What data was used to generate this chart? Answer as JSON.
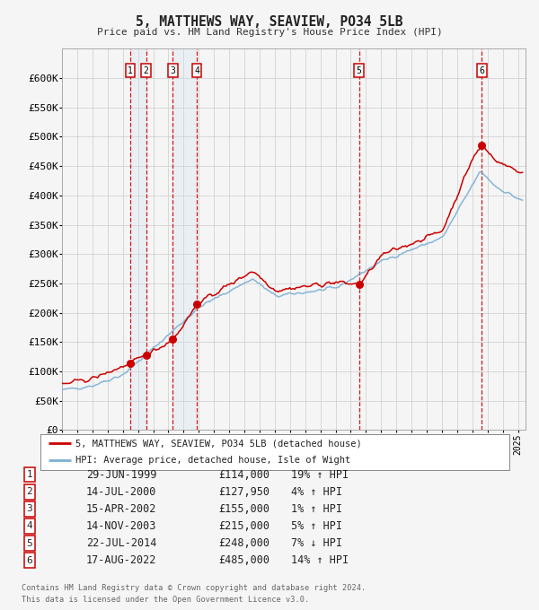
{
  "title": "5, MATTHEWS WAY, SEAVIEW, PO34 5LB",
  "subtitle": "Price paid vs. HM Land Registry's House Price Index (HPI)",
  "legend_property": "5, MATTHEWS WAY, SEAVIEW, PO34 5LB (detached house)",
  "legend_hpi": "HPI: Average price, detached house, Isle of Wight",
  "footer_line1": "Contains HM Land Registry data © Crown copyright and database right 2024.",
  "footer_line2": "This data is licensed under the Open Government Licence v3.0.",
  "sales": [
    {
      "num": 1,
      "date": "29-JUN-1999",
      "year": 1999.49,
      "price": 114000,
      "hpi_pct": "19% ↑ HPI"
    },
    {
      "num": 2,
      "date": "14-JUL-2000",
      "year": 2000.53,
      "price": 127950,
      "hpi_pct": "4% ↑ HPI"
    },
    {
      "num": 3,
      "date": "15-APR-2002",
      "year": 2002.29,
      "price": 155000,
      "hpi_pct": "1% ↑ HPI"
    },
    {
      "num": 4,
      "date": "14-NOV-2003",
      "year": 2003.87,
      "price": 215000,
      "hpi_pct": "5% ↑ HPI"
    },
    {
      "num": 5,
      "date": "22-JUL-2014",
      "year": 2014.55,
      "price": 248000,
      "hpi_pct": "7% ↓ HPI"
    },
    {
      "num": 6,
      "date": "17-AUG-2022",
      "year": 2022.63,
      "price": 485000,
      "hpi_pct": "14% ↑ HPI"
    }
  ],
  "ylim": [
    0,
    650000
  ],
  "yticks": [
    0,
    50000,
    100000,
    150000,
    200000,
    250000,
    300000,
    350000,
    400000,
    450000,
    500000,
    550000,
    600000
  ],
  "ytick_labels": [
    "£0",
    "£50K",
    "£100K",
    "£150K",
    "£200K",
    "£250K",
    "£300K",
    "£350K",
    "£400K",
    "£450K",
    "£500K",
    "£550K",
    "£600K"
  ],
  "xlim_start": 1995.0,
  "xlim_end": 2025.5,
  "hpi_color": "#7bafd4",
  "property_color": "#cc0000",
  "sale_dot_color": "#cc0000",
  "sale_box_color": "#cc0000",
  "shade_color": "#ddeeff",
  "grid_color": "#cccccc",
  "background_color": "#f5f5f5"
}
